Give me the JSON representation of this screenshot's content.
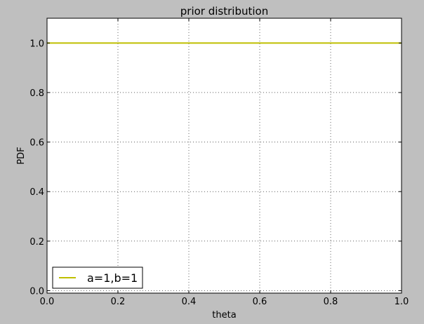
{
  "chart_data": {
    "type": "line",
    "title": "prior distribution",
    "xlabel": "theta",
    "ylabel": "PDF",
    "xlim": [
      0.0,
      1.0
    ],
    "ylim": [
      -0.01,
      1.1
    ],
    "xticks": [
      0.0,
      0.2,
      0.4,
      0.6,
      0.8,
      1.0
    ],
    "xtick_labels": [
      "0.0",
      "0.2",
      "0.4",
      "0.6",
      "0.8",
      "1.0"
    ],
    "yticks": [
      0.0,
      0.2,
      0.4,
      0.6,
      0.8,
      1.0
    ],
    "ytick_labels": [
      "0.0",
      "0.2",
      "0.4",
      "0.6",
      "0.8",
      "1.0"
    ],
    "grid": true,
    "legend_position": "lower-left",
    "series": [
      {
        "name": "a=1,b=1",
        "color": "#bfbf00",
        "x": [
          0.0,
          0.1,
          0.2,
          0.3,
          0.4,
          0.5,
          0.6,
          0.7,
          0.8,
          0.9,
          1.0
        ],
        "y": [
          1.0,
          1.0,
          1.0,
          1.0,
          1.0,
          1.0,
          1.0,
          1.0,
          1.0,
          1.0,
          1.0
        ]
      }
    ]
  }
}
